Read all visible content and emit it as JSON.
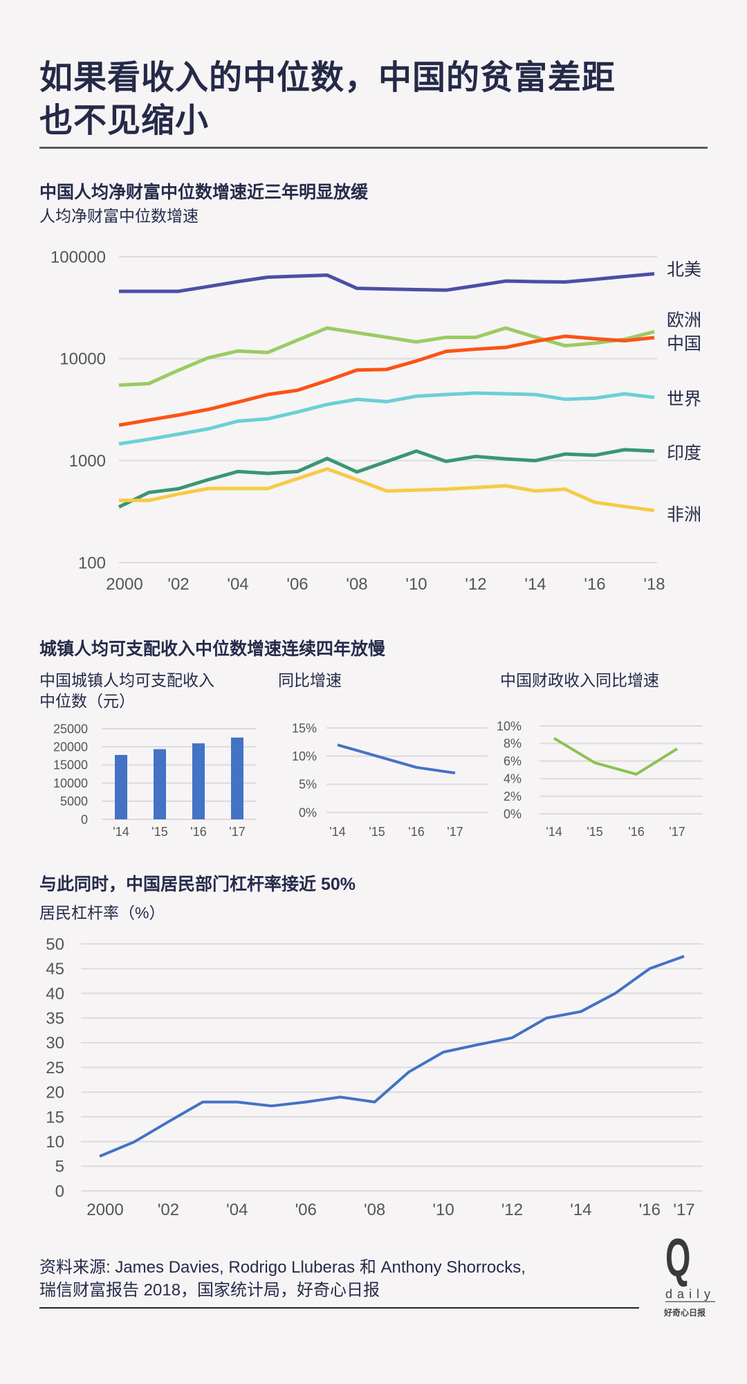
{
  "header": {
    "title_line1": "如果看收入的中位数，中国的贫富差距",
    "title_line2": "也不见缩小"
  },
  "section1": {
    "heading": "中国人均净财富中位数增速近三年明显放缓",
    "subtitle": "人均净财富中位数增速"
  },
  "section2": {
    "heading": "城镇人均可支配收入中位数增速连续四年放慢",
    "panel1_title_line1": "中国城镇人均可支配收入",
    "panel1_title_line2": "中位数（元）",
    "panel2_title": "同比增速",
    "panel3_title": "中国财政收入同比增速"
  },
  "section3": {
    "heading": "与此同时，中国居民部门杠杆率接近 50%",
    "subtitle": "居民杠杆率（%）"
  },
  "footer": {
    "source_line1": "资料来源: James Davies, Rodrigo Lluberas 和 Anthony Shorrocks,",
    "source_line2": "瑞信财富报告 2018，国家统计局，好奇心日报",
    "logo_letter": "Q",
    "logo_word": "daily",
    "logo_cn": "好奇心日报"
  },
  "chart_data": [
    {
      "type": "line",
      "y_scale": "log",
      "ylim": [
        100,
        100000
      ],
      "yticks": [
        100,
        1000,
        10000,
        100000
      ],
      "ytick_labels": [
        "100",
        "1000",
        "10000",
        "100000"
      ],
      "x": [
        2000,
        2001,
        2002,
        2003,
        2004,
        2005,
        2006,
        2007,
        2008,
        2009,
        2010,
        2011,
        2012,
        2013,
        2014,
        2015,
        2016,
        2017,
        2018
      ],
      "xticks": [
        2000,
        2002,
        2004,
        2006,
        2008,
        2010,
        2012,
        2014,
        2016,
        2018
      ],
      "xtick_labels": [
        "2000",
        "'02",
        "'04",
        "'06",
        "'08",
        "'10",
        "'12",
        "'14",
        "'16",
        "'18"
      ],
      "grid": true,
      "legend": "right-end labels",
      "series": [
        {
          "name": "北美",
          "color": "#4b4fa5",
          "values": [
            45800,
            45800,
            45800,
            51000,
            57000,
            63000,
            64500,
            66000,
            49000,
            48300,
            47600,
            47000,
            52000,
            57700,
            57000,
            56500,
            60000,
            64000,
            68000
          ]
        },
        {
          "name": "欧洲",
          "color": "#9bcb62",
          "values": [
            5500,
            5700,
            7700,
            10200,
            11900,
            11500,
            15200,
            20000,
            18000,
            16200,
            14600,
            16200,
            16200,
            20000,
            16300,
            13400,
            14200,
            15500,
            18400
          ]
        },
        {
          "name": "中国",
          "color": "#fb5316",
          "values": [
            2230,
            2500,
            2800,
            3180,
            3750,
            4450,
            4900,
            6100,
            7740,
            7850,
            9500,
            11800,
            12400,
            12900,
            14800,
            16600,
            15700,
            15000,
            16100
          ]
        },
        {
          "name": "世界",
          "color": "#6bcfd6",
          "values": [
            1460,
            1620,
            1820,
            2050,
            2440,
            2570,
            3000,
            3560,
            3990,
            3790,
            4290,
            4450,
            4600,
            4530,
            4450,
            4000,
            4100,
            4520,
            4170
          ]
        },
        {
          "name": "印度",
          "color": "#3a9671",
          "values": [
            351,
            487,
            530,
            650,
            782,
            750,
            782,
            1050,
            775,
            980,
            1240,
            983,
            1100,
            1040,
            1000,
            1160,
            1130,
            1280,
            1240
          ]
        },
        {
          "name": "非洲",
          "color": "#f7ca46",
          "values": [
            407,
            407,
            470,
            532,
            532,
            532,
            665,
            830,
            650,
            504,
            514,
            525,
            545,
            567,
            504,
            525,
            390,
            355,
            324
          ]
        }
      ]
    },
    {
      "type": "bar",
      "categories": [
        "'14",
        "'15",
        "'16",
        "'17"
      ],
      "values": [
        17750,
        19350,
        20960,
        22560
      ],
      "color": "#4472c4",
      "ylim": [
        0,
        25000
      ],
      "yticks": [
        0,
        5000,
        10000,
        15000,
        20000,
        25000
      ],
      "ytick_labels": [
        "0",
        "5000",
        "10000",
        "15000",
        "20000",
        "25000"
      ],
      "grid": true
    },
    {
      "type": "line",
      "categories": [
        "'14",
        "'15",
        "'16",
        "'17"
      ],
      "values": [
        12,
        10,
        8,
        7
      ],
      "color": "#4472c4",
      "ylim": [
        0,
        15
      ],
      "yticks": [
        0,
        5,
        10,
        15
      ],
      "ytick_labels": [
        "0%",
        "5%",
        "10%",
        "15%"
      ],
      "grid": true
    },
    {
      "type": "line",
      "categories": [
        "'14",
        "'15",
        "'16",
        "'17"
      ],
      "values": [
        8.6,
        5.8,
        4.5,
        7.4
      ],
      "color": "#8cc152",
      "ylim": [
        0,
        10
      ],
      "yticks": [
        0,
        2,
        4,
        6,
        8,
        10
      ],
      "ytick_labels": [
        "0%",
        "2%",
        "4%",
        "6%",
        "8%",
        "10%"
      ],
      "grid": true
    },
    {
      "type": "line",
      "x": [
        2000,
        2001,
        2002,
        2003,
        2004,
        2005,
        2006,
        2007,
        2008,
        2009,
        2010,
        2011,
        2012,
        2013,
        2014,
        2015,
        2016,
        2017
      ],
      "values": [
        7,
        9.9,
        14,
        18,
        18,
        17.2,
        18,
        19,
        18,
        24.1,
        28.1,
        29.6,
        31,
        35,
        36.3,
        40,
        45,
        47.5
      ],
      "color": "#4472c4",
      "ylim": [
        0,
        50
      ],
      "yticks": [
        0,
        5,
        10,
        15,
        20,
        25,
        30,
        35,
        40,
        45,
        50
      ],
      "ytick_labels": [
        "0",
        "5",
        "10",
        "15",
        "20",
        "25",
        "30",
        "35",
        "40",
        "45",
        "50"
      ],
      "xticks": [
        2000,
        2002,
        2004,
        2006,
        2008,
        2010,
        2012,
        2014,
        2016,
        2017
      ],
      "xtick_labels": [
        "2000",
        "'02",
        "'04",
        "'06",
        "'08",
        "'10",
        "'12",
        "'14",
        "'16",
        "'17"
      ],
      "grid": true
    }
  ]
}
